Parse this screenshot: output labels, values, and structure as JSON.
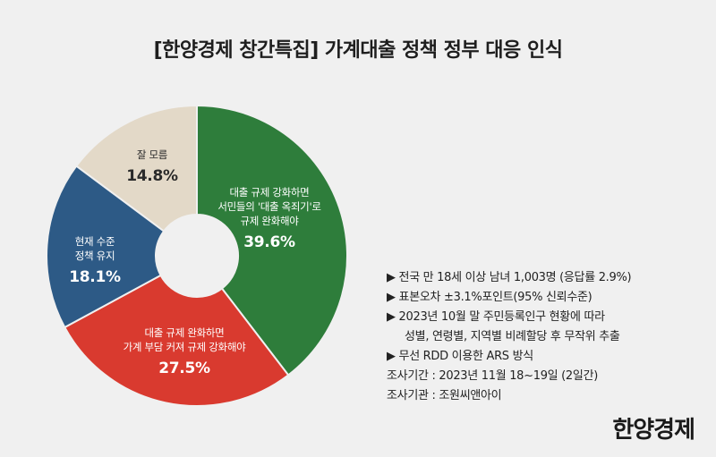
{
  "title": "[한양경제 창간특집] 가계대출 정책 정부 대응 인식",
  "chart_data": {
    "type": "pie",
    "donut": true,
    "categories": [
      "대출 규제 강화하면 서민들의 '대출 옥죄기'로 규제 완화해야",
      "대출 규제 완화하면 가계 부담 커져 규제 강화해야",
      "현재 수준 정책 유지",
      "잘 모름"
    ],
    "values": [
      39.6,
      27.5,
      18.1,
      14.8
    ],
    "colors": [
      "#2e7d3b",
      "#d93a2f",
      "#2d5a86",
      "#e3d9c8"
    ],
    "labels": [
      {
        "lines": [
          "대출 규제 강화하면",
          "서민들의 '대출 옥죄기'로",
          "규제 완화해야"
        ],
        "pct": "39.6%"
      },
      {
        "lines": [
          "대출 규제 완화하면",
          "가계 부담 커져 규제 강화해야"
        ],
        "pct": "27.5%"
      },
      {
        "lines": [
          "현재 수준",
          "정책 유지"
        ],
        "pct": "18.1%"
      },
      {
        "lines": [
          "잘 모름"
        ],
        "pct": "14.8%"
      }
    ]
  },
  "notes": [
    "▶ 전국 만 18세 이상 남녀 1,003명 (응답률 2.9%)",
    "▶ 표본오차 ±3.1%포인트(95% 신뢰수준)",
    "▶ 2023년 10월 말 주민등록인구 현황에 따라",
    "성별, 연령별, 지역별 비례할당 후 무작위 추출",
    "▶ 무선 RDD 이용한 ARS 방식",
    "조사기간 : 2023년 11월 18~19일 (2일간)",
    "조사기관 : 조원씨앤아이"
  ],
  "logo": "한양경제"
}
